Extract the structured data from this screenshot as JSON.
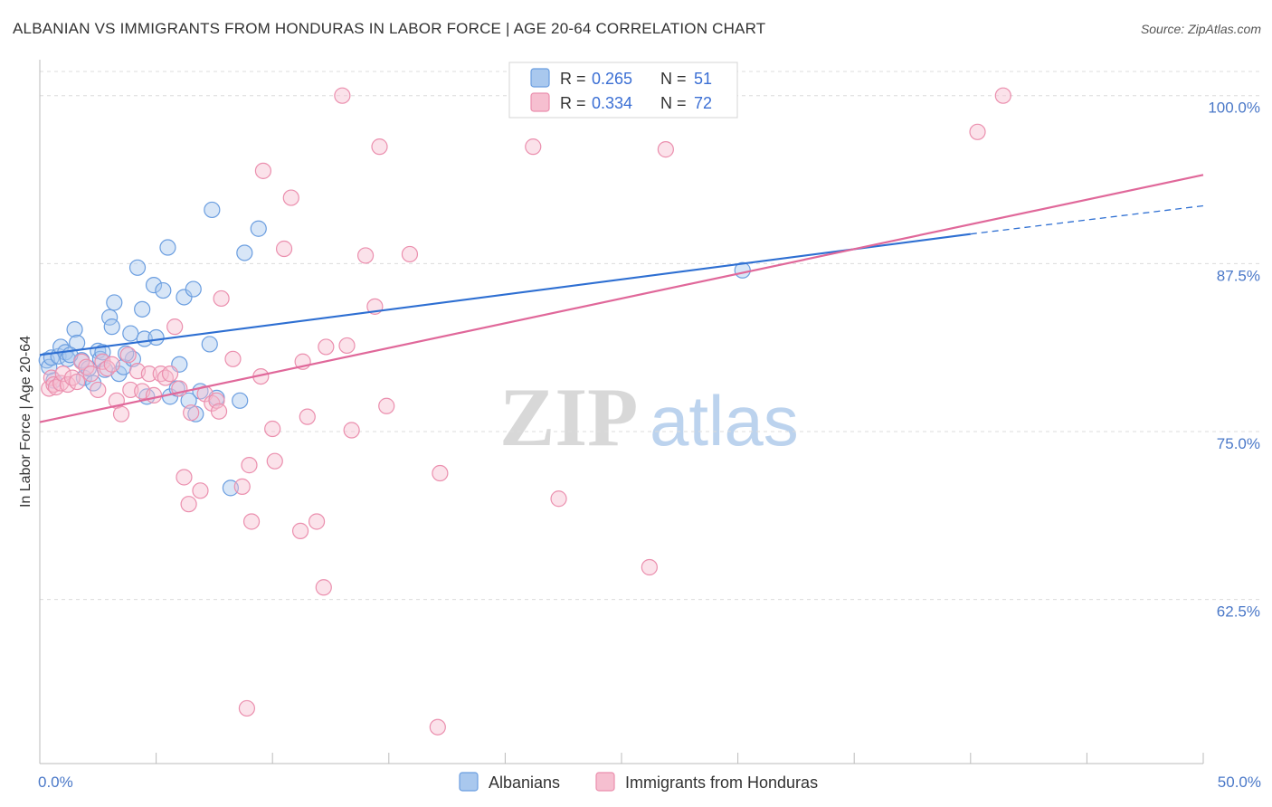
{
  "title": "ALBANIAN VS IMMIGRANTS FROM HONDURAS IN LABOR FORCE | AGE 20-64 CORRELATION CHART",
  "source": "Source: ZipAtlas.com",
  "watermark": {
    "zip": "ZIP",
    "atlas": "atlas"
  },
  "colors": {
    "albanians_fill": "#a9c8ee",
    "albanians_stroke": "#6b9ee0",
    "albanians_line": "#2e6fd2",
    "honduras_fill": "#f6bfd0",
    "honduras_stroke": "#eb8fae",
    "honduras_line": "#e0689a",
    "grid": "#dcdcdc",
    "tick_label": "#4a78c8"
  },
  "legend": {
    "rows": [
      {
        "r_label": "R = ",
        "r_value": "0.265",
        "n_label": "N = ",
        "n_value": "51"
      },
      {
        "r_label": "R = ",
        "r_value": "0.334",
        "n_label": "N = ",
        "n_value": "72"
      }
    ]
  },
  "chart_data": {
    "type": "scatter",
    "title": "ALBANIAN VS IMMIGRANTS FROM HONDURAS IN LABOR FORCE | AGE 20-64 CORRELATION CHART",
    "xlabel": "",
    "ylabel": "In Labor Force | Age 20-64",
    "xlim": [
      0,
      50
    ],
    "ylim": [
      51.5,
      102
    ],
    "x_tick_labels": [
      "0.0%",
      "50.0%"
    ],
    "y_ticks": [
      62.5,
      75.0,
      87.5,
      100.0
    ],
    "y_tick_labels": [
      "62.5%",
      "75.0%",
      "87.5%",
      "100.0%"
    ],
    "grid": true,
    "legend_position": "top-center",
    "series": [
      {
        "name": "Albanians",
        "r": 0.265,
        "n": 51,
        "trend": {
          "x": [
            0,
            40
          ],
          "y": [
            80.7,
            89.7
          ],
          "dashed_to": [
            50,
            91.8
          ]
        },
        "points": [
          [
            0.3,
            80.3
          ],
          [
            0.4,
            79.8
          ],
          [
            0.5,
            80.5
          ],
          [
            0.6,
            78.8
          ],
          [
            0.8,
            80.6
          ],
          [
            0.9,
            81.3
          ],
          [
            1.1,
            80.9
          ],
          [
            1.2,
            80.4
          ],
          [
            1.5,
            82.6
          ],
          [
            1.6,
            81.6
          ],
          [
            1.8,
            80.3
          ],
          [
            1.9,
            79.0
          ],
          [
            2.1,
            79.7
          ],
          [
            2.3,
            78.6
          ],
          [
            2.5,
            81.0
          ],
          [
            2.6,
            80.4
          ],
          [
            2.7,
            80.9
          ],
          [
            2.8,
            79.6
          ],
          [
            3.0,
            83.5
          ],
          [
            3.1,
            82.8
          ],
          [
            3.2,
            84.6
          ],
          [
            3.4,
            79.3
          ],
          [
            3.6,
            79.8
          ],
          [
            3.9,
            82.3
          ],
          [
            4.0,
            80.4
          ],
          [
            4.2,
            87.2
          ],
          [
            4.4,
            84.1
          ],
          [
            4.5,
            81.9
          ],
          [
            4.6,
            77.6
          ],
          [
            4.9,
            85.9
          ],
          [
            5.0,
            82.0
          ],
          [
            5.3,
            85.5
          ],
          [
            5.5,
            88.7
          ],
          [
            5.6,
            77.6
          ],
          [
            5.9,
            78.2
          ],
          [
            6.0,
            80.0
          ],
          [
            6.2,
            85.0
          ],
          [
            6.4,
            77.3
          ],
          [
            6.6,
            85.6
          ],
          [
            6.7,
            76.3
          ],
          [
            6.9,
            78.0
          ],
          [
            7.3,
            81.5
          ],
          [
            7.4,
            91.5
          ],
          [
            7.6,
            77.5
          ],
          [
            8.2,
            70.8
          ],
          [
            8.6,
            77.3
          ],
          [
            8.8,
            88.3
          ],
          [
            9.4,
            90.1
          ],
          [
            30.2,
            87.0
          ],
          [
            3.7,
            80.8
          ],
          [
            1.3,
            80.7
          ]
        ]
      },
      {
        "name": "Immigrants from Honduras",
        "r": 0.334,
        "n": 72,
        "trend": {
          "x": [
            0,
            50
          ],
          "y": [
            75.7,
            94.1
          ]
        },
        "points": [
          [
            0.4,
            78.2
          ],
          [
            0.5,
            79.0
          ],
          [
            0.6,
            78.5
          ],
          [
            0.7,
            78.3
          ],
          [
            0.9,
            78.6
          ],
          [
            1.0,
            79.3
          ],
          [
            1.2,
            78.5
          ],
          [
            1.4,
            79.0
          ],
          [
            1.6,
            78.7
          ],
          [
            1.8,
            80.2
          ],
          [
            2.0,
            79.8
          ],
          [
            2.2,
            79.3
          ],
          [
            2.5,
            78.1
          ],
          [
            2.7,
            80.2
          ],
          [
            2.9,
            79.7
          ],
          [
            3.1,
            80.0
          ],
          [
            3.3,
            77.3
          ],
          [
            3.5,
            76.3
          ],
          [
            3.8,
            80.7
          ],
          [
            3.9,
            78.1
          ],
          [
            4.2,
            79.5
          ],
          [
            4.4,
            78.0
          ],
          [
            4.7,
            79.3
          ],
          [
            4.9,
            77.7
          ],
          [
            5.2,
            79.3
          ],
          [
            5.4,
            79.0
          ],
          [
            5.6,
            79.3
          ],
          [
            5.8,
            82.8
          ],
          [
            6.0,
            78.2
          ],
          [
            6.2,
            71.6
          ],
          [
            6.4,
            69.6
          ],
          [
            6.5,
            76.4
          ],
          [
            6.9,
            70.6
          ],
          [
            7.1,
            77.8
          ],
          [
            7.4,
            77.1
          ],
          [
            7.6,
            77.3
          ],
          [
            7.7,
            76.5
          ],
          [
            7.8,
            84.9
          ],
          [
            8.3,
            80.4
          ],
          [
            8.7,
            70.9
          ],
          [
            8.9,
            54.4
          ],
          [
            9.0,
            72.5
          ],
          [
            9.1,
            68.3
          ],
          [
            9.5,
            79.1
          ],
          [
            9.6,
            94.4
          ],
          [
            10.0,
            75.2
          ],
          [
            10.1,
            72.8
          ],
          [
            10.5,
            88.6
          ],
          [
            10.8,
            92.4
          ],
          [
            11.2,
            67.6
          ],
          [
            11.3,
            80.2
          ],
          [
            11.5,
            76.1
          ],
          [
            11.9,
            68.3
          ],
          [
            12.2,
            63.4
          ],
          [
            12.3,
            81.3
          ],
          [
            13.0,
            100.0
          ],
          [
            13.2,
            81.4
          ],
          [
            13.4,
            75.1
          ],
          [
            14.0,
            88.1
          ],
          [
            14.4,
            84.3
          ],
          [
            14.6,
            96.2
          ],
          [
            14.9,
            76.9
          ],
          [
            15.9,
            88.2
          ],
          [
            17.1,
            53.0
          ],
          [
            17.2,
            71.9
          ],
          [
            21.2,
            96.2
          ],
          [
            22.3,
            70.0
          ],
          [
            25.5,
            99.7
          ],
          [
            26.2,
            64.9
          ],
          [
            40.3,
            97.3
          ],
          [
            41.4,
            100.0
          ],
          [
            26.9,
            96.0
          ]
        ]
      }
    ]
  }
}
